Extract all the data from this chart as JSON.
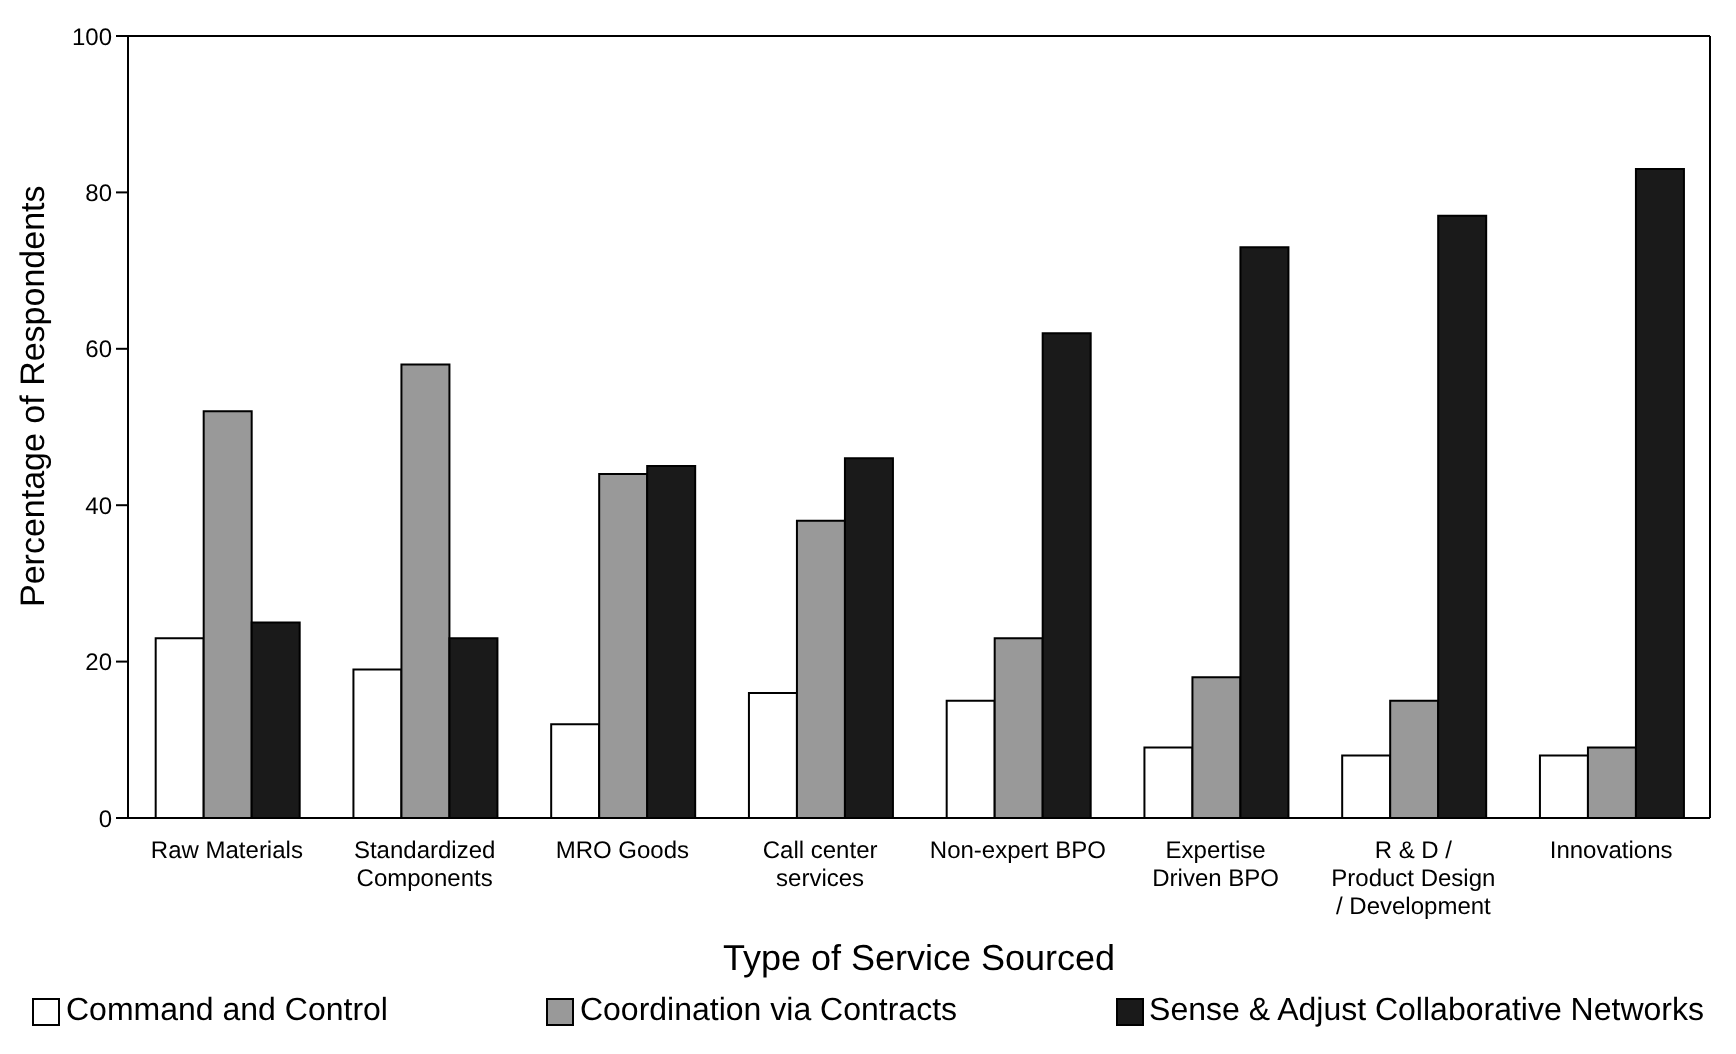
{
  "chart_data": {
    "type": "bar",
    "xlabel": "Type of Service Sourced",
    "ylabel": "Percentage of Respondents",
    "categories": [
      "Raw Materials",
      "Standardized Components",
      "MRO Goods",
      "Call center services",
      "Non-expert BPO",
      "Expertise Driven BPO",
      "R & D / Product Design / Development",
      "Innovations"
    ],
    "series": [
      {
        "name": "Command and Control",
        "color": "#ffffff",
        "values": [
          23,
          19,
          12,
          16,
          15,
          9,
          8,
          8
        ]
      },
      {
        "name": "Coordination via Contracts",
        "color": "#999999",
        "values": [
          52,
          58,
          44,
          38,
          23,
          18,
          15,
          9
        ]
      },
      {
        "name": "Sense & Adjust Collaborative Networks",
        "color": "#1a1a1a",
        "values": [
          25,
          23,
          45,
          46,
          62,
          73,
          77,
          83
        ]
      }
    ],
    "ylim": [
      0,
      100
    ],
    "yticks": [
      0,
      20,
      40,
      60,
      80,
      100
    ],
    "grid": false,
    "legend": "bottom"
  }
}
